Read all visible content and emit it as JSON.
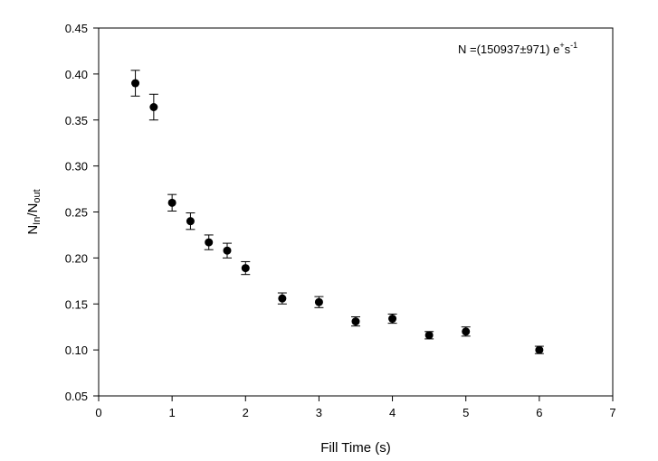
{
  "chart_data": {
    "type": "scatter",
    "xlabel": "Fill Time (s)",
    "ylabel": {
      "base": "N",
      "num_sub": "In",
      "sep": "/N",
      "den_sub": "out"
    },
    "xlim": [
      0,
      7
    ],
    "ylim": [
      0.05,
      0.45
    ],
    "x_ticks": [
      "0",
      "1",
      "2",
      "3",
      "4",
      "5",
      "6",
      "7"
    ],
    "y_ticks": [
      "0.05",
      "0.10",
      "0.15",
      "0.20",
      "0.25",
      "0.30",
      "0.35",
      "0.40",
      "0.45"
    ],
    "grid": false,
    "annotation": {
      "prefix": "N =(150937",
      "pm": "±",
      "err": "971) e",
      "sup1": "+",
      "mid": "s",
      "sup2": "-1"
    },
    "points": [
      {
        "x": 0.5,
        "y": 0.39,
        "err": 0.014
      },
      {
        "x": 0.75,
        "y": 0.364,
        "err": 0.014
      },
      {
        "x": 1.0,
        "y": 0.26,
        "err": 0.009
      },
      {
        "x": 1.25,
        "y": 0.24,
        "err": 0.009
      },
      {
        "x": 1.5,
        "y": 0.217,
        "err": 0.008
      },
      {
        "x": 1.75,
        "y": 0.208,
        "err": 0.008
      },
      {
        "x": 2.0,
        "y": 0.189,
        "err": 0.007
      },
      {
        "x": 2.5,
        "y": 0.156,
        "err": 0.006
      },
      {
        "x": 3.0,
        "y": 0.152,
        "err": 0.006
      },
      {
        "x": 3.5,
        "y": 0.131,
        "err": 0.005
      },
      {
        "x": 4.0,
        "y": 0.134,
        "err": 0.005
      },
      {
        "x": 4.5,
        "y": 0.116,
        "err": 0.004
      },
      {
        "x": 5.0,
        "y": 0.12,
        "err": 0.005
      },
      {
        "x": 6.0,
        "y": 0.1,
        "err": 0.004
      }
    ]
  }
}
